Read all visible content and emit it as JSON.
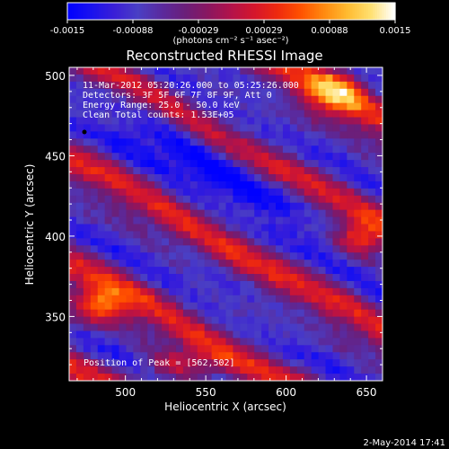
{
  "chart_data": {
    "type": "heatmap",
    "title": "Reconstructed RHESSI Image",
    "xlabel": "Heliocentric X (arcsec)",
    "ylabel": "Heliocentric Y (arcsec)",
    "xlim": [
      465,
      660
    ],
    "ylim": [
      310,
      505
    ],
    "xticks": [
      500,
      550,
      600,
      650
    ],
    "yticks": [
      350,
      400,
      450,
      500
    ],
    "xtick_labels": [
      "500",
      "550",
      "600",
      "650"
    ],
    "ytick_labels": [
      "350",
      "400",
      "450",
      "500"
    ],
    "colorbar": {
      "range": [
        -0.0015,
        0.0015
      ],
      "tick_labels": [
        "-0.0015",
        "-0.00088",
        "-0.00029",
        "0.00029",
        "0.00088",
        "0.0015"
      ],
      "units_label": "(photons cm⁻² s⁻¹ asec⁻²)",
      "colors": [
        "#0000ff",
        "#1a12ee",
        "#3b1fd6",
        "#4a3fc4",
        "#5a2a9e",
        "#6a1f7a",
        "#8a1660",
        "#b3124a",
        "#d5162c",
        "#ef2a0e",
        "#ff5200",
        "#ff8a10",
        "#ffbb30",
        "#ffe070",
        "#ffffff"
      ]
    },
    "annotations": {
      "time_range": "11-Mar-2012 05:20:26.000 to 05:25:26.000",
      "detectors": "Detectors: 3F 5F 6F 7F 8F 9F, Att 0",
      "energy": "Energy Range: 25.0 - 50.0 keV",
      "method": "Clean     Total counts: 1.53E+05",
      "peak": "Position of Peak = [562,502]"
    },
    "timestamp": "2-May-2014 17:41"
  }
}
